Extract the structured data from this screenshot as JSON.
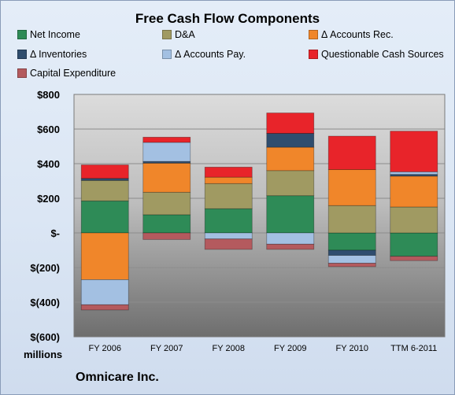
{
  "company": "Omnicare Inc.",
  "units_label": "millions",
  "chart_data": {
    "type": "bar",
    "stacked": true,
    "title": "Free Cash Flow Components",
    "xlabel": "",
    "ylabel": "",
    "ylim": [
      -600,
      800
    ],
    "yticks": [
      {
        "value": 800,
        "label": "$800"
      },
      {
        "value": 600,
        "label": "$600"
      },
      {
        "value": 400,
        "label": "$400"
      },
      {
        "value": 200,
        "label": "$200"
      },
      {
        "value": 0,
        "label": "$-"
      },
      {
        "value": -200,
        "label": "$(200)"
      },
      {
        "value": -400,
        "label": "$(400)"
      },
      {
        "value": -600,
        "label": "$(600)"
      }
    ],
    "grid": true,
    "legend_position": "top",
    "categories": [
      "FY 2006",
      "FY 2007",
      "FY 2008",
      "FY 2009",
      "FY 2010",
      "TTM 6-2011"
    ],
    "series": [
      {
        "name": "Net Income",
        "color": "#2e8b57",
        "values": [
          185,
          105,
          140,
          215,
          -100,
          -135
        ]
      },
      {
        "name": "D&A",
        "color": "#a09a62",
        "values": [
          118,
          130,
          145,
          145,
          158,
          150
        ]
      },
      {
        "name": "Δ Accounts Rec.",
        "color": "#f0862a",
        "values": [
          -270,
          168,
          37,
          135,
          208,
          178
        ]
      },
      {
        "name": "Δ Inventories",
        "color": "#2f4d6e",
        "values": [
          12,
          10,
          0,
          80,
          -30,
          10
        ]
      },
      {
        "name": "Δ Accounts Pay.",
        "color": "#a3c0e2",
        "values": [
          -145,
          110,
          -35,
          -65,
          -45,
          15
        ]
      },
      {
        "name": "Questionable Cash Sources",
        "color": "#e8242a",
        "values": [
          78,
          30,
          58,
          118,
          193,
          235
        ]
      },
      {
        "name": "Capital Expenditure",
        "color": "#b45a5e",
        "values": [
          -30,
          -38,
          -60,
          -30,
          -20,
          -25
        ]
      }
    ]
  }
}
